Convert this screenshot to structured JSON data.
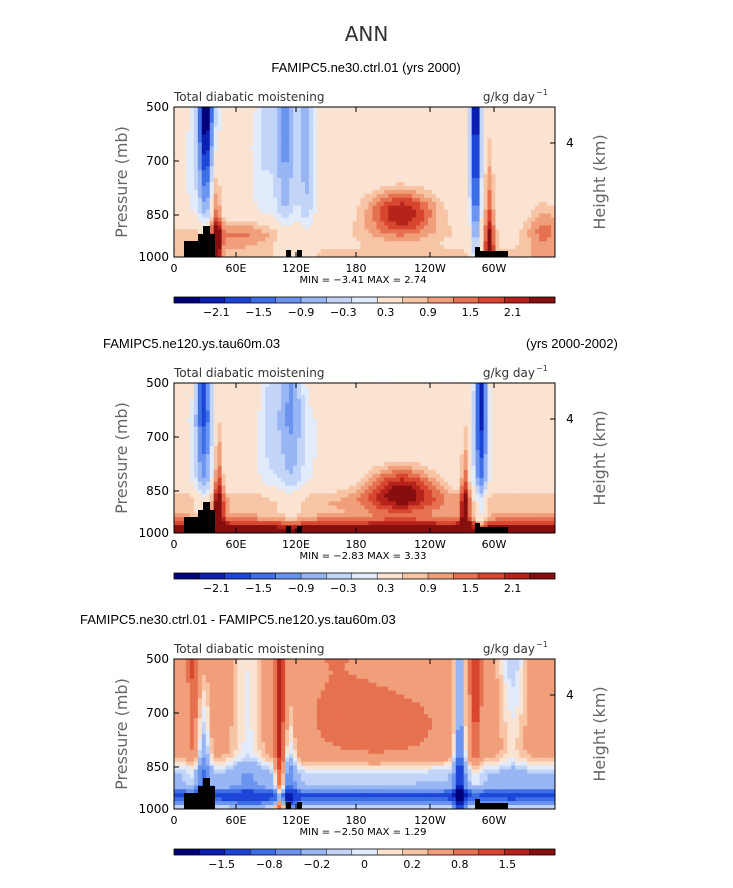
{
  "figure_title": "ANN",
  "chart_data": [
    {
      "type": "heatmap",
      "title": "FAMIPC5.ne30.ctrl.01 (yrs 2000)",
      "subtitle_left": "Total diabatic moistening",
      "units": "g/kg day",
      "units_exp": "−1",
      "ylabel": "Pressure (mb)",
      "ylabel_right": "Height (km)",
      "yticks": [
        "500",
        "700",
        "850",
        "1000"
      ],
      "right_ticks": [
        "4"
      ],
      "xticks": [
        "0",
        "60E",
        "120E",
        "180",
        "120W",
        "60W"
      ],
      "stats": "MIN =   −3.41   MAX =    2.74",
      "colorbar_ticks": [
        "−2.1",
        "−1.5",
        "−0.9",
        "−0.3",
        "0.3",
        "0.9",
        "1.5",
        "2.1"
      ]
    },
    {
      "type": "heatmap",
      "title": "FAMIPC5.ne120.ys.tau60m.03",
      "title_right": "(yrs 2000-2002)",
      "subtitle_left": "Total diabatic moistening",
      "units": "g/kg day",
      "units_exp": "−1",
      "ylabel": "Pressure (mb)",
      "ylabel_right": "Height (km)",
      "yticks": [
        "500",
        "700",
        "850",
        "1000"
      ],
      "right_ticks": [
        "4"
      ],
      "xticks": [
        "0",
        "60E",
        "120E",
        "180",
        "120W",
        "60W"
      ],
      "stats": "MIN =   −2.83   MAX =    3.33",
      "colorbar_ticks": [
        "−2.1",
        "−1.5",
        "−0.9",
        "−0.3",
        "0.3",
        "0.9",
        "1.5",
        "2.1"
      ]
    },
    {
      "type": "heatmap",
      "title": "FAMIPC5.ne30.ctrl.01 - FAMIPC5.ne120.ys.tau60m.03",
      "subtitle_left": "Total diabatic moistening",
      "units": "g/kg day",
      "units_exp": "−1",
      "ylabel": "Pressure (mb)",
      "ylabel_right": "Height (km)",
      "yticks": [
        "500",
        "700",
        "850",
        "1000"
      ],
      "right_ticks": [
        "4"
      ],
      "xticks": [
        "0",
        "60E",
        "120E",
        "180",
        "120W",
        "60W"
      ],
      "stats": "MIN =   −2.50   MAX =    1.29",
      "colorbar_ticks": [
        "−1.5",
        "−0.8",
        "−0.2",
        "0",
        "0.2",
        "0.8",
        "1.5"
      ]
    }
  ],
  "colors": {
    "palette": [
      "#00007a",
      "#0a1fb0",
      "#1d46d8",
      "#3d6ee6",
      "#6a94ef",
      "#98b6f4",
      "#c2d5f8",
      "#e2ebfb",
      "#fbe3d2",
      "#f7c4a5",
      "#f09f7a",
      "#e67150",
      "#d84630",
      "#b7221a",
      "#870e0e"
    ],
    "topography": "#000000"
  }
}
